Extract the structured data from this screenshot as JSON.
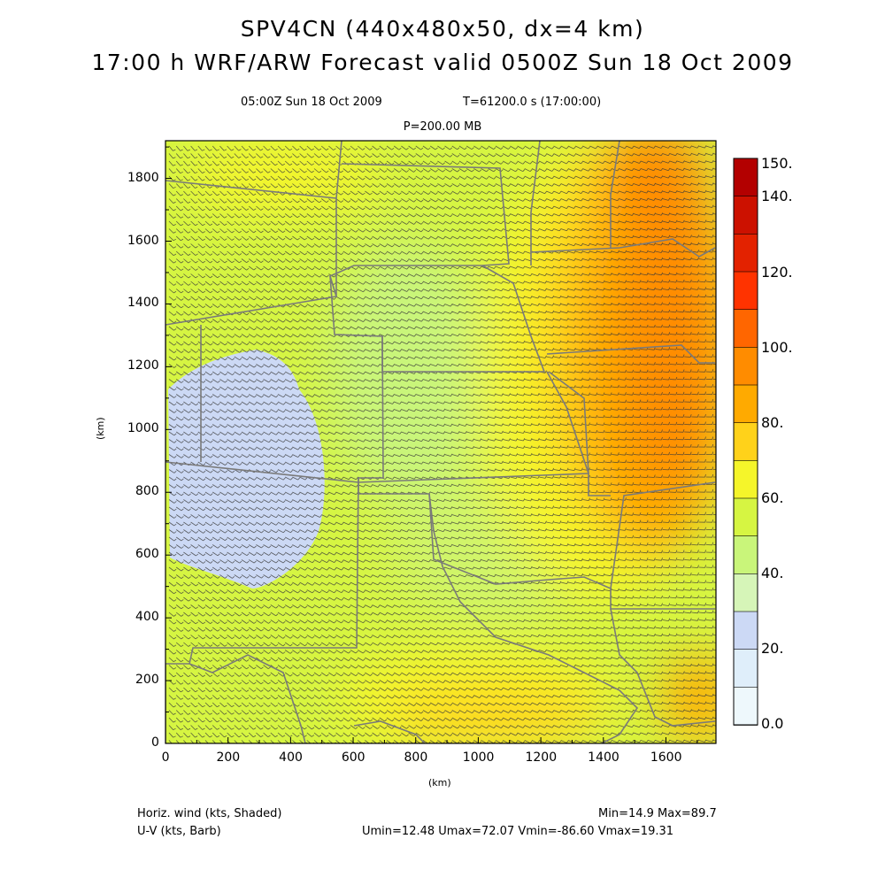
{
  "titles": {
    "line1": "SPV4CN (440x480x50, dx=4 km)",
    "line2": "17:00 h WRF/ARW Forecast valid 0500Z Sun 18 Oct 2009",
    "valid_time": "05:00Z Sun 18 Oct 2009",
    "model_time": "T=61200.0 s (17:00:00)",
    "level": "P=200.00 MB"
  },
  "axes": {
    "x_label": "(km)",
    "y_label": "(km)",
    "x_ticks": [
      "0",
      "200",
      "400",
      "600",
      "800",
      "1000",
      "1200",
      "1400",
      "1600"
    ],
    "y_ticks": [
      "0",
      "200",
      "400",
      "600",
      "800",
      "1000",
      "1200",
      "1400",
      "1600",
      "1800"
    ],
    "x_range": [
      0,
      1760
    ],
    "y_range": [
      0,
      1920
    ]
  },
  "colorbar": {
    "labels": [
      "150.",
      "140.",
      "120.",
      "100.",
      "80.",
      "60.",
      "40.",
      "20.",
      "0.0"
    ],
    "colors": [
      "#b30000",
      "#cc1100",
      "#e32200",
      "#ff3300",
      "#ff6600",
      "#ff8c00",
      "#ffaa00",
      "#ffd21a",
      "#f5f52a",
      "#d6f542",
      "#c9f57a",
      "#d6f5b8",
      "#ccd9f5",
      "#dfeefa",
      "#eef8fc"
    ]
  },
  "footer": {
    "field1": "Horiz. wind (kts, Shaded)",
    "field2": "U-V (kts, Barb)",
    "minmax": "Min=14.9 Max=89.7",
    "uv_stats": "Umin=12.48 Umax=72.07 Vmin=-86.60 Vmax=19.31"
  }
}
